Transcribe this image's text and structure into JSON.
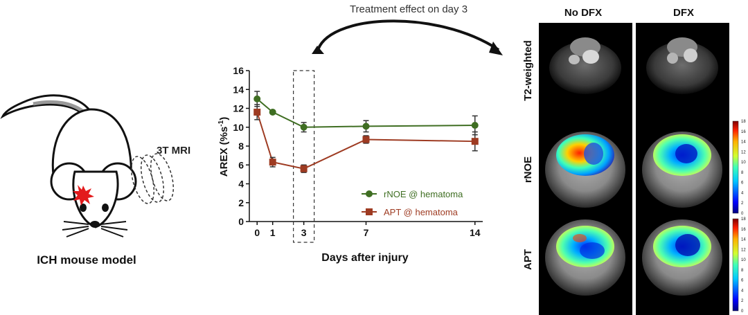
{
  "mouse_panel": {
    "mri_label": "3T MRI",
    "caption": "ICH mouse model"
  },
  "arrow_label": "Treatment effect on day 3",
  "chart_data": {
    "type": "line",
    "xlabel": "Days after injury",
    "ylabel_main": "AREX (%s",
    "ylabel_sup": "-1",
    "ylabel_close": ")",
    "x": [
      0,
      1,
      3,
      7,
      14
    ],
    "xticks": [
      "0",
      "1",
      "3",
      "7",
      "14"
    ],
    "yticks": [
      "0",
      "2",
      "4",
      "6",
      "8",
      "10",
      "12",
      "14",
      "16"
    ],
    "ylim": [
      0,
      16
    ],
    "xlim": [
      -0.5,
      14.5
    ],
    "highlight_x": 3,
    "series": [
      {
        "name": "rNOE @ hematoma",
        "color": "#3f6e22",
        "marker": "circle",
        "values": [
          13.0,
          11.6,
          10.0,
          10.1,
          10.2
        ],
        "errors": [
          0.8,
          0.0,
          0.5,
          0.6,
          1.0
        ]
      },
      {
        "name": "APT @ hematoma",
        "color": "#9e3b22",
        "marker": "square",
        "values": [
          11.6,
          6.3,
          5.6,
          8.7,
          8.5
        ],
        "errors": [
          0.8,
          0.5,
          0.4,
          0.4,
          1.0
        ]
      }
    ]
  },
  "mri_panel": {
    "columns": [
      "No DFX",
      "DFX"
    ],
    "rows": [
      "T2-weighted",
      "rNOE",
      "APT"
    ],
    "colorbar_ticks": [
      "0",
      "2",
      "4",
      "6",
      "8",
      "10",
      "12",
      "14",
      "16",
      "18"
    ]
  },
  "colors": {
    "burst": "#e31a1c",
    "arrow": "#111111",
    "rnoe": "#3f6e22",
    "apt": "#9e3b22"
  }
}
